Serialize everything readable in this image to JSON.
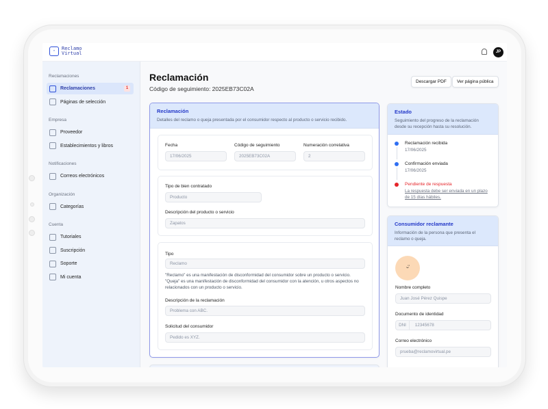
{
  "app": {
    "logo_line1": "Reclamo",
    "logo_line2": "Virtual",
    "user_initials": "JP"
  },
  "sidebar": {
    "sections": [
      {
        "title": "Reclamaciones",
        "items": [
          {
            "label": "Reclamaciones",
            "icon": "document-icon",
            "active": true,
            "badge": "1"
          },
          {
            "label": "Páginas de selección",
            "icon": "globe-icon"
          }
        ]
      },
      {
        "title": "Empresa",
        "items": [
          {
            "label": "Proveedor",
            "icon": "building-icon"
          },
          {
            "label": "Establecimientos y libros",
            "icon": "store-icon"
          }
        ]
      },
      {
        "title": "Notificaciones",
        "items": [
          {
            "label": "Correos electrónicos",
            "icon": "mail-icon"
          }
        ]
      },
      {
        "title": "Organización",
        "items": [
          {
            "label": "Categorías",
            "icon": "tag-icon"
          }
        ]
      },
      {
        "title": "Cuenta",
        "items": [
          {
            "label": "Tutoriales",
            "icon": "graduation-cap-icon"
          },
          {
            "label": "Suscripción",
            "icon": "gem-icon"
          },
          {
            "label": "Soporte",
            "icon": "help-icon"
          },
          {
            "label": "Mi cuenta",
            "icon": "gear-icon"
          }
        ]
      }
    ]
  },
  "page": {
    "title": "Reclamación",
    "subtitle": "Código de seguimiento: 2025EB73C02A",
    "download_pdf": "Descargar PDF",
    "view_public": "Ver página pública"
  },
  "claim": {
    "title": "Reclamación",
    "description": "Detalles del reclamo o queja presentada por el consumidor respecto al producto o servicio recibido.",
    "fecha_label": "Fecha",
    "fecha": "17/06/2025",
    "codigo_label": "Código de seguimiento",
    "codigo": "2025EB73C02A",
    "numeracion_label": "Numeración correlativa",
    "numeracion": "2",
    "bien_label": "Tipo de bien contratado",
    "bien": "Producto",
    "desc_prod_label": "Descripción del producto o servicio",
    "desc_prod": "Zapatos",
    "tipo_label": "Tipo",
    "tipo": "Reclamo",
    "help1": "\"Reclamo\" es una manifestación de disconformidad del consumidor sobre un producto o servicio.",
    "help2": "\"Queja\" es una manifestación de disconformidad del consumidor con la atención, u otros aspectos no relacionados con un producto o servicio.",
    "desc_rec_label": "Descripción de la reclamación",
    "desc_rec": "Problema con ABC.",
    "solicitud_label": "Solicitud del consumidor",
    "solicitud": "Pedido es XYZ."
  },
  "status": {
    "title": "Estado",
    "description": "Seguimiento del progreso de la reclamación desde su recepción hasta su resolución.",
    "steps": [
      {
        "title": "Reclamación recibida",
        "date": "17/06/2025",
        "color": "#2f6ff2"
      },
      {
        "title": "Confirmación enviada",
        "date": "17/06/2025",
        "color": "#2f6ff2"
      },
      {
        "title": "Pendiente de respuesta",
        "date": "La respuesta debe ser enviada en un plazo de 15 días hábiles.",
        "color": "#e5252a"
      }
    ]
  },
  "consumer": {
    "title": "Consumidor reclamante",
    "description": "Información de la persona que presenta el reclamo o queja.",
    "name_label": "Nombre completo",
    "name": "Juan José Pérez Quispe",
    "doc_label": "Documento de identidad",
    "doc_type": "DNI",
    "doc": "12345678",
    "email_label": "Correo electrónico",
    "email": "prueba@reclamovirtual.pe"
  }
}
